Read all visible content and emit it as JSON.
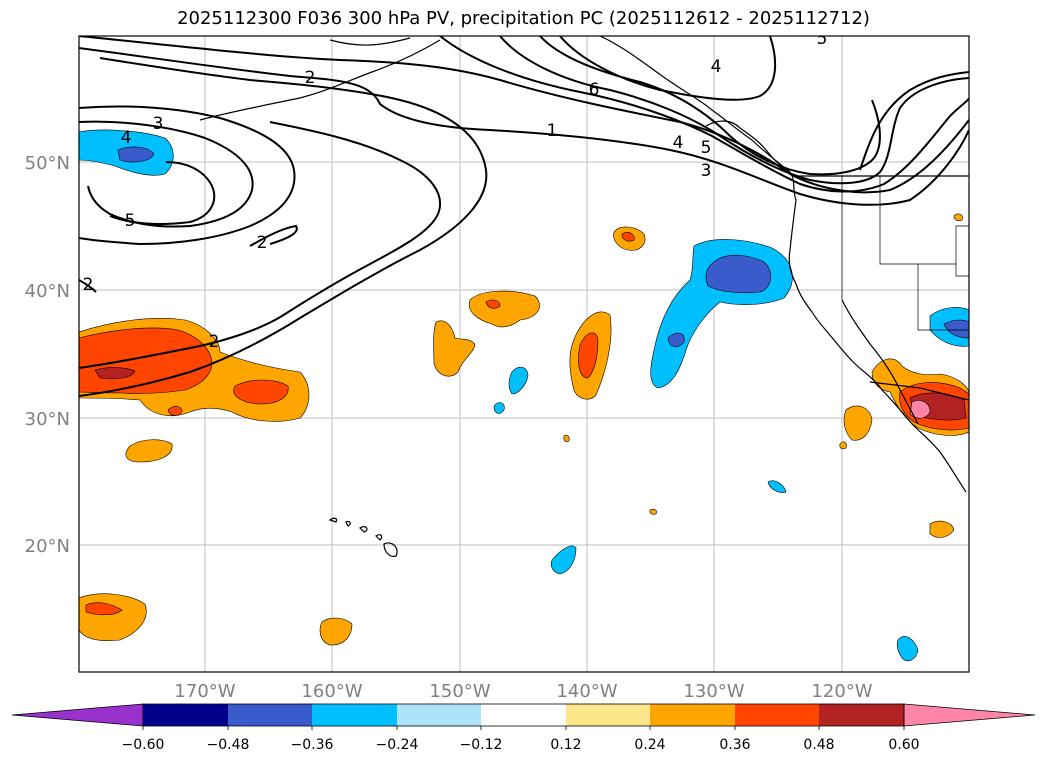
{
  "title": "2025112300 F036 300 hPa PV, precipitation PC (2025112612 - 2025112712)",
  "map": {
    "lat_labels": [
      "50°N",
      "40°N",
      "30°N",
      "20°N"
    ],
    "lon_labels": [
      "170°W",
      "160°W",
      "150°W",
      "140°W",
      "130°W",
      "120°W"
    ],
    "contour_labels": [
      "2",
      "3",
      "4",
      "5",
      "2",
      "2",
      "2",
      "6",
      "1",
      "4",
      "5",
      "3",
      "4",
      "5"
    ]
  },
  "colorbar": {
    "ticks": [
      "−0.60",
      "−0.48",
      "−0.36",
      "−0.24",
      "−0.12",
      "0.12",
      "0.24",
      "0.36",
      "0.48",
      "0.60"
    ],
    "colors": [
      "#9932cc",
      "#00008b",
      "#3a5bcc",
      "#00bfff",
      "#ade4fb",
      "#ffffff",
      "#fde68a",
      "#ffa500",
      "#ff4500",
      "#b22222",
      "#ff85a8"
    ]
  }
}
